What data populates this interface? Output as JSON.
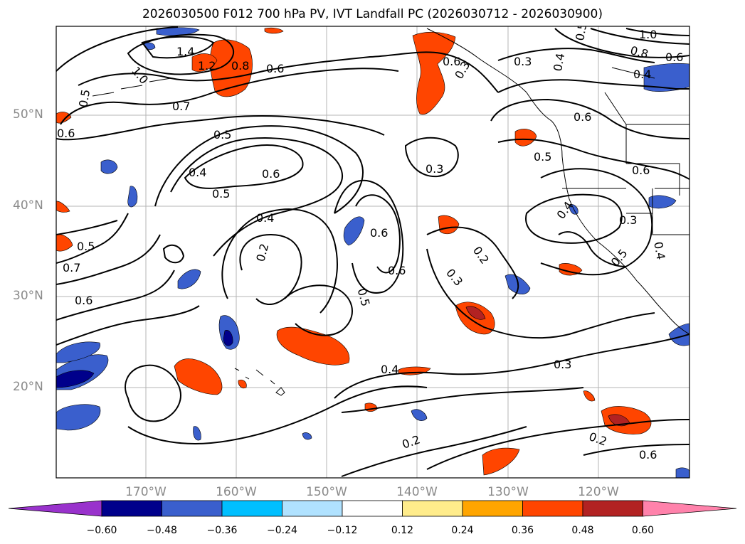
{
  "title": "2026030500 F012 700 hPa PV, IVT Landfall PC (2026030712 - 2026030900)",
  "lat_labels": [
    "50°N",
    "40°N",
    "30°N",
    "20°N"
  ],
  "lon_labels": [
    "170°W",
    "160°W",
    "150°W",
    "140°W",
    "130°W",
    "120°W"
  ],
  "colorbar": {
    "ticks": [
      "−0.60",
      "−0.48",
      "−0.36",
      "−0.24",
      "−0.12",
      "0.12",
      "0.24",
      "0.36",
      "0.48",
      "0.60"
    ],
    "colors": [
      "#9932cc",
      "#00008b",
      "#3a5fcd",
      "#00bfff",
      "#b0e2ff",
      "#ffffff",
      "#ffec8b",
      "#ffa500",
      "#ff4500",
      "#b22222",
      "#ff82ab"
    ]
  },
  "contour_labels": [
    "1.4",
    "1.2",
    "1.0",
    "0.8",
    "0.5",
    "0.6",
    "0.7",
    "0.6",
    "0.4",
    "0.5",
    "0.6",
    "0.4",
    "0.2",
    "0.6",
    "0.6",
    "0.5",
    "0.3",
    "0.2",
    "0.3",
    "0.3",
    "0.2",
    "0.2",
    "0.4",
    "0.3",
    "0.5",
    "0.6",
    "0.7",
    "0.6",
    "0.5",
    "0.4",
    "0.5",
    "0.6",
    "1.0",
    "0.8",
    "0.6",
    "0.4",
    "0.6",
    "0.3",
    "0.6",
    "0.5",
    "0.4",
    "0.3",
    "0.5",
    "0.4"
  ]
}
